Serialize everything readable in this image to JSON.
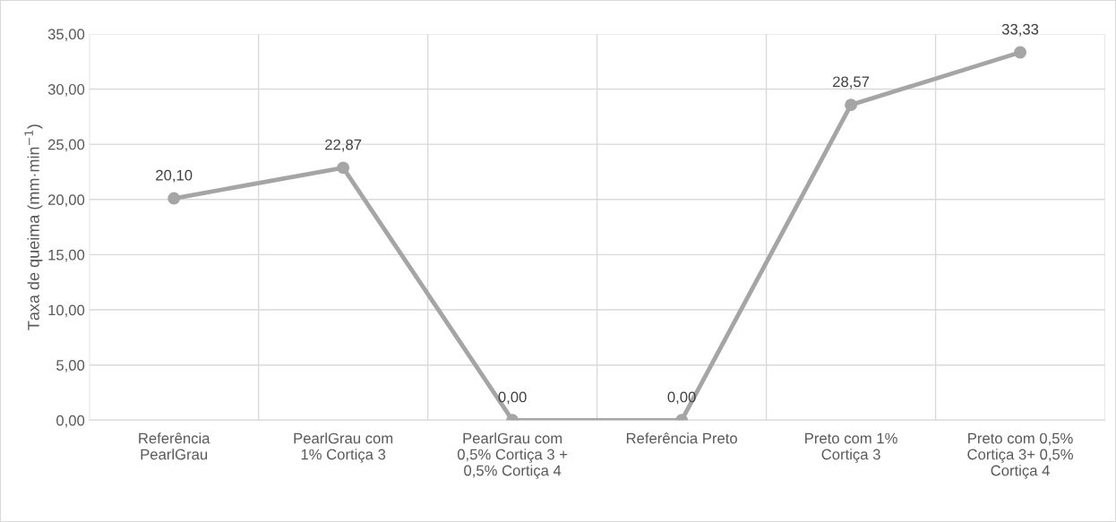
{
  "chart_data": {
    "type": "line",
    "ylabel": "Taxa de queima (mm·min$^{−1}$)",
    "categories": [
      "Referência\nPearlGrau",
      "PearlGrau com\n1% Cortiça 3",
      "PearlGrau com\n0,5% Cortiça 3 +\n0,5% Cortiça 4",
      "Referência Preto",
      "Preto com 1%\nCortiça 3",
      "Preto com 0,5%\nCortiça 3+ 0,5%\nCortiça 4"
    ],
    "series": [
      {
        "color": "#a5a5a5",
        "values": [
          20.1,
          22.87,
          0.0,
          0.0,
          28.57,
          33.33
        ]
      }
    ],
    "value_labels": [
      "20,10",
      "22,87",
      "0,00",
      "0,00",
      "28,57",
      "33,33"
    ],
    "ylim": [
      0,
      35
    ],
    "yticks": [
      {
        "value": 0,
        "label": "0,00"
      },
      {
        "value": 5,
        "label": "5,00"
      },
      {
        "value": 10,
        "label": "10,00"
      },
      {
        "value": 15,
        "label": "15,00"
      },
      {
        "value": 20,
        "label": "20,00"
      },
      {
        "value": 25,
        "label": "25,00"
      },
      {
        "value": 30,
        "label": "30,00"
      },
      {
        "value": 35,
        "label": "35,00"
      }
    ],
    "grid": true,
    "marker": "circle",
    "line_style": "solid",
    "legend": false
  }
}
